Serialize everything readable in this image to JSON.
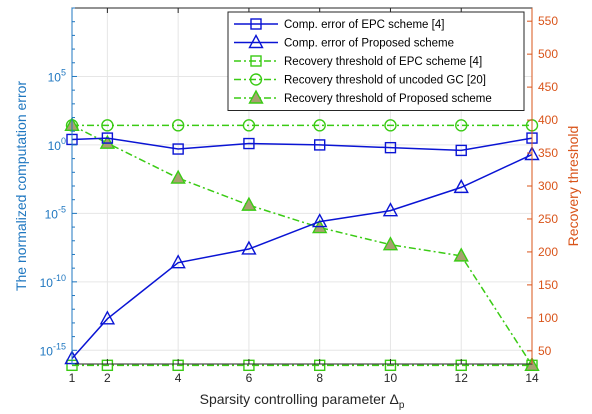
{
  "chart_data": {
    "type": "line",
    "xlabel": "Sparsity controlling parameter Δ",
    "xlabel_subscript": "p",
    "ylabel_left": "The normalized computation error",
    "ylabel_right": "Recovery threshold",
    "left_axis_color": "#1f77c0",
    "right_axis_color": "#d9541a",
    "x_ticks": [
      "1",
      "2",
      "4",
      "6",
      "8",
      "10",
      "12",
      "14"
    ],
    "x_tick_values": [
      1,
      2,
      4,
      6,
      8,
      10,
      12,
      14
    ],
    "xlim": [
      1,
      14
    ],
    "left_scale": "log",
    "left_ylim_log10": [
      -16,
      10
    ],
    "left_tick_exponents": [
      -15,
      -10,
      -5,
      0,
      5
    ],
    "left_tick_base": "10",
    "right_ylim": [
      30,
      570
    ],
    "right_ticks": [
      "50",
      "100",
      "150",
      "200",
      "250",
      "300",
      "350",
      "400",
      "450",
      "500",
      "550"
    ],
    "right_tick_values": [
      50,
      100,
      150,
      200,
      250,
      300,
      350,
      400,
      450,
      500,
      550
    ],
    "grid": true,
    "legend_position": "top-right",
    "series": [
      {
        "name": "Comp. error of EPC scheme [4]",
        "axis": "left",
        "color": "#0a14d4",
        "line": "solid",
        "marker": "square",
        "x": [
          1,
          2,
          4,
          6,
          8,
          10,
          12,
          14
        ],
        "y_log10": [
          0.4,
          0.5,
          -0.3,
          0.1,
          0,
          -0.2,
          -0.4,
          0.5
        ]
      },
      {
        "name": "Comp. error of Proposed scheme",
        "axis": "left",
        "color": "#0a14d4",
        "line": "solid",
        "marker": "triangle",
        "x": [
          1,
          2,
          4,
          6,
          8,
          10,
          12,
          14
        ],
        "y_log10": [
          -15.6,
          -12.7,
          -8.6,
          -7.6,
          -5.6,
          -4.8,
          -3.1,
          -0.7
        ]
      },
      {
        "name": "Recovery threshold of EPC scheme [4]",
        "axis": "right",
        "color": "#3acb14",
        "line": "dashdot",
        "marker": "square",
        "x": [
          1,
          2,
          4,
          6,
          8,
          10,
          12,
          14
        ],
        "y": [
          28,
          28,
          28,
          28,
          28,
          28,
          28,
          28
        ]
      },
      {
        "name": "Recovery threshold of uncoded GC [20]",
        "axis": "right",
        "color": "#3acb14",
        "line": "dashdot",
        "marker": "circle",
        "x": [
          1,
          2,
          4,
          6,
          8,
          10,
          12,
          14
        ],
        "y": [
          392,
          392,
          392,
          392,
          392,
          392,
          392,
          392
        ]
      },
      {
        "name": "Recovery threshold of Proposed scheme",
        "axis": "right",
        "color": "#3acb14",
        "line": "dashdot",
        "marker": "triangle",
        "marker_face": "#a8a070",
        "x": [
          1,
          2,
          4,
          6,
          8,
          10,
          12,
          14
        ],
        "y": [
          392,
          365,
          312,
          271,
          237,
          211,
          194,
          28
        ]
      }
    ]
  }
}
